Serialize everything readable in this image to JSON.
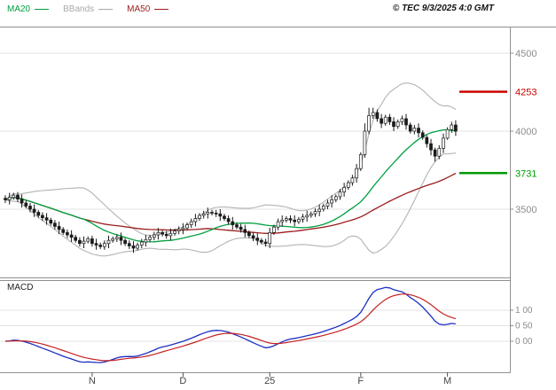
{
  "header": {
    "legend": [
      {
        "label": "MA20",
        "color": "#00a040"
      },
      {
        "label": "BBands",
        "color": "#a8a8a8"
      },
      {
        "label": "MA50",
        "color": "#9b1c1c"
      }
    ],
    "copyright": "© TEC 9/3/2025 4:0 GMT"
  },
  "chart_data": {
    "type": "candlestick",
    "title": "Daily price chart with Bollinger Bands, MA20, MA50 and MACD sub-panel",
    "colors": {
      "grid": "#e3e3e3",
      "frame": "#909090",
      "axis_text": "#8c8c8c",
      "month_text": "#444444",
      "candle": "#1a1a1a"
    },
    "price_axis": {
      "gridlines": [
        4500,
        4000,
        3500
      ],
      "labels": [
        "4500",
        "4000",
        "3500"
      ],
      "visible_range": [
        3062,
        4670
      ]
    },
    "levels": {
      "resistance": {
        "value": 4253,
        "label": "4253",
        "color": "#cc0000"
      },
      "support": {
        "value": 3731,
        "label": "3731",
        "color": "#009900"
      }
    },
    "x_axis": {
      "labels": [
        {
          "text": "N",
          "day": 21
        },
        {
          "text": "D",
          "day": 43
        },
        {
          "text": "25",
          "day": 64
        },
        {
          "text": "F",
          "day": 86
        },
        {
          "text": "M",
          "day": 107
        }
      ]
    },
    "indicators": {
      "ma20": {
        "period": 20,
        "color": "#00a040"
      },
      "ma50": {
        "period": 50,
        "color": "#9b1c1c"
      },
      "bbands": {
        "period": 20,
        "stddev": 2,
        "color": "#b3b3b3"
      },
      "macd": {
        "label": "MACD",
        "fast": 12,
        "slow": 26,
        "signal": 9,
        "line_color": "#1b2fc4",
        "signal_color": "#c42222",
        "gridlines": [
          100,
          50,
          0
        ],
        "gridline_labels": [
          "1 00",
          "0 50",
          "0 00"
        ],
        "visible_range": [
          -97,
          194
        ]
      }
    },
    "candles": [
      [
        3570,
        3590,
        3540,
        3560
      ],
      [
        3560,
        3605,
        3530,
        3575
      ],
      [
        3575,
        3605,
        3560,
        3590
      ],
      [
        3590,
        3610,
        3545,
        3565
      ],
      [
        3565,
        3595,
        3510,
        3540
      ],
      [
        3540,
        3555,
        3505,
        3520
      ],
      [
        3520,
        3540,
        3480,
        3500
      ],
      [
        3500,
        3530,
        3450,
        3480
      ],
      [
        3480,
        3495,
        3445,
        3460
      ],
      [
        3460,
        3480,
        3425,
        3445
      ],
      [
        3445,
        3475,
        3400,
        3430
      ],
      [
        3430,
        3445,
        3395,
        3410
      ],
      [
        3410,
        3430,
        3370,
        3390
      ],
      [
        3390,
        3420,
        3340,
        3370
      ],
      [
        3370,
        3385,
        3335,
        3350
      ],
      [
        3350,
        3370,
        3315,
        3335
      ],
      [
        3335,
        3365,
        3290,
        3320
      ],
      [
        3320,
        3335,
        3285,
        3300
      ],
      [
        3300,
        3320,
        3260,
        3280
      ],
      [
        3280,
        3325,
        3250,
        3295
      ],
      [
        3295,
        3325,
        3280,
        3310
      ],
      [
        3310,
        3330,
        3260,
        3280
      ],
      [
        3280,
        3310,
        3240,
        3270
      ],
      [
        3270,
        3285,
        3245,
        3260
      ],
      [
        3260,
        3300,
        3240,
        3280
      ],
      [
        3280,
        3330,
        3250,
        3300
      ],
      [
        3300,
        3325,
        3285,
        3310
      ],
      [
        3310,
        3340,
        3290,
        3320
      ],
      [
        3320,
        3350,
        3270,
        3300
      ],
      [
        3300,
        3315,
        3265,
        3280
      ],
      [
        3280,
        3300,
        3245,
        3265
      ],
      [
        3265,
        3295,
        3220,
        3250
      ],
      [
        3250,
        3285,
        3235,
        3270
      ],
      [
        3270,
        3310,
        3250,
        3290
      ],
      [
        3290,
        3335,
        3260,
        3305
      ],
      [
        3305,
        3335,
        3290,
        3320
      ],
      [
        3320,
        3355,
        3300,
        3335
      ],
      [
        3335,
        3380,
        3305,
        3350
      ],
      [
        3350,
        3365,
        3325,
        3340
      ],
      [
        3340,
        3360,
        3310,
        3330
      ],
      [
        3330,
        3375,
        3300,
        3345
      ],
      [
        3345,
        3375,
        3330,
        3360
      ],
      [
        3360,
        3390,
        3340,
        3370
      ],
      [
        3370,
        3410,
        3340,
        3380
      ],
      [
        3380,
        3415,
        3365,
        3400
      ],
      [
        3400,
        3440,
        3380,
        3420
      ],
      [
        3420,
        3470,
        3390,
        3440
      ],
      [
        3440,
        3475,
        3425,
        3460
      ],
      [
        3460,
        3490,
        3440,
        3470
      ],
      [
        3470,
        3510,
        3440,
        3480
      ],
      [
        3480,
        3495,
        3460,
        3475
      ],
      [
        3475,
        3495,
        3450,
        3470
      ],
      [
        3470,
        3500,
        3425,
        3455
      ],
      [
        3455,
        3470,
        3425,
        3440
      ],
      [
        3440,
        3460,
        3400,
        3420
      ],
      [
        3420,
        3450,
        3370,
        3400
      ],
      [
        3400,
        3415,
        3370,
        3385
      ],
      [
        3385,
        3405,
        3350,
        3370
      ],
      [
        3370,
        3400,
        3320,
        3350
      ],
      [
        3350,
        3365,
        3315,
        3330
      ],
      [
        3330,
        3350,
        3295,
        3315
      ],
      [
        3315,
        3345,
        3270,
        3300
      ],
      [
        3300,
        3315,
        3275,
        3290
      ],
      [
        3290,
        3310,
        3260,
        3280
      ],
      [
        3280,
        3380,
        3250,
        3350
      ],
      [
        3350,
        3400,
        3335,
        3385
      ],
      [
        3385,
        3440,
        3365,
        3420
      ],
      [
        3420,
        3460,
        3390,
        3430
      ],
      [
        3430,
        3455,
        3415,
        3440
      ],
      [
        3440,
        3460,
        3410,
        3430
      ],
      [
        3430,
        3460,
        3390,
        3420
      ],
      [
        3420,
        3450,
        3405,
        3435
      ],
      [
        3435,
        3470,
        3415,
        3450
      ],
      [
        3450,
        3490,
        3420,
        3460
      ],
      [
        3460,
        3485,
        3445,
        3470
      ],
      [
        3470,
        3505,
        3450,
        3485
      ],
      [
        3485,
        3530,
        3455,
        3500
      ],
      [
        3500,
        3535,
        3485,
        3520
      ],
      [
        3520,
        3560,
        3500,
        3540
      ],
      [
        3540,
        3590,
        3510,
        3560
      ],
      [
        3560,
        3595,
        3545,
        3580
      ],
      [
        3580,
        3630,
        3560,
        3610
      ],
      [
        3610,
        3670,
        3580,
        3640
      ],
      [
        3640,
        3685,
        3625,
        3670
      ],
      [
        3670,
        3720,
        3650,
        3700
      ],
      [
        3700,
        3790,
        3670,
        3760
      ],
      [
        3760,
        3865,
        3745,
        3850
      ],
      [
        3850,
        4050,
        3830,
        4000
      ],
      [
        4000,
        4150,
        3980,
        4100
      ],
      [
        4100,
        4150,
        4080,
        4120
      ],
      [
        4120,
        4140,
        4060,
        4080
      ],
      [
        4080,
        4110,
        4020,
        4050
      ],
      [
        4050,
        4105,
        4035,
        4090
      ],
      [
        4090,
        4110,
        4040,
        4060
      ],
      [
        4060,
        4090,
        4000,
        4030
      ],
      [
        4030,
        4075,
        4015,
        4060
      ],
      [
        4060,
        4100,
        4040,
        4080
      ],
      [
        4080,
        4110,
        4010,
        4040
      ],
      [
        4040,
        4055,
        3985,
        4000
      ],
      [
        4000,
        4040,
        3980,
        4020
      ],
      [
        4020,
        4050,
        3960,
        3990
      ],
      [
        3990,
        4005,
        3945,
        3960
      ],
      [
        3960,
        3975,
        3895,
        3920
      ],
      [
        3920,
        3950,
        3845,
        3880
      ],
      [
        3880,
        3895,
        3805,
        3840
      ],
      [
        3840,
        3910,
        3820,
        3890
      ],
      [
        3890,
        3985,
        3860,
        3955
      ],
      [
        3955,
        4025,
        3945,
        4010
      ],
      [
        4010,
        4060,
        3990,
        4040
      ],
      [
        4040,
        4070,
        3970,
        4000
      ]
    ]
  }
}
